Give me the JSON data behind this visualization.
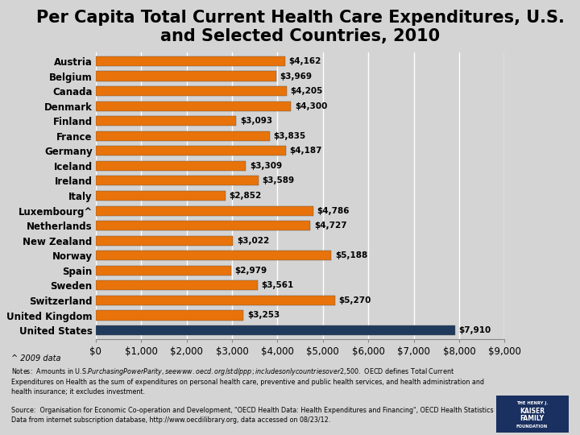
{
  "title": "Per Capita Total Current Health Care Expenditures, U.S.\nand Selected Countries, 2010",
  "countries": [
    "Austria",
    "Belgium",
    "Canada",
    "Denmark",
    "Finland",
    "France",
    "Germany",
    "Iceland",
    "Ireland",
    "Italy",
    "Luxembourg^",
    "Netherlands",
    "New Zealand",
    "Norway",
    "Spain",
    "Sweden",
    "Switzerland",
    "United Kingdom",
    "United States"
  ],
  "values": [
    4162,
    3969,
    4205,
    4300,
    3093,
    3835,
    4187,
    3309,
    3589,
    2852,
    4786,
    4727,
    3022,
    5188,
    2979,
    3561,
    5270,
    3253,
    7910
  ],
  "bar_colors": [
    "#e8730a",
    "#e8730a",
    "#e8730a",
    "#e8730a",
    "#e8730a",
    "#e8730a",
    "#e8730a",
    "#e8730a",
    "#e8730a",
    "#e8730a",
    "#e8730a",
    "#e8730a",
    "#e8730a",
    "#e8730a",
    "#e8730a",
    "#e8730a",
    "#e8730a",
    "#e8730a",
    "#1f3a5c"
  ],
  "background_color": "#d4d4d4",
  "xlim": [
    0,
    9000
  ],
  "xticks": [
    0,
    1000,
    2000,
    3000,
    4000,
    5000,
    6000,
    7000,
    8000,
    9000
  ],
  "title_fontsize": 15,
  "tick_fontsize": 8.5,
  "bar_height": 0.65,
  "footnote": "^ 2009 data",
  "notes_text": "Notes:  Amounts in U.S.$ Purchasing Power Parity, see www.oecd.org/std/ppp; includes only countries over $2,500.  OECD defines Total Current\nExpenditures on Health as the sum of expenditures on personal health care, preventive and public health services, and health administration and\nhealth insurance; it excludes investment.",
  "source_text": "Source:  Organisation for Economic Co-operation and Development, \"OECD Health Data: Health Expenditures and Financing\", OECD Health Statistics\nData from internet subscription database, http://www.oecdilibrary.org, data accessed on 08/23/12."
}
